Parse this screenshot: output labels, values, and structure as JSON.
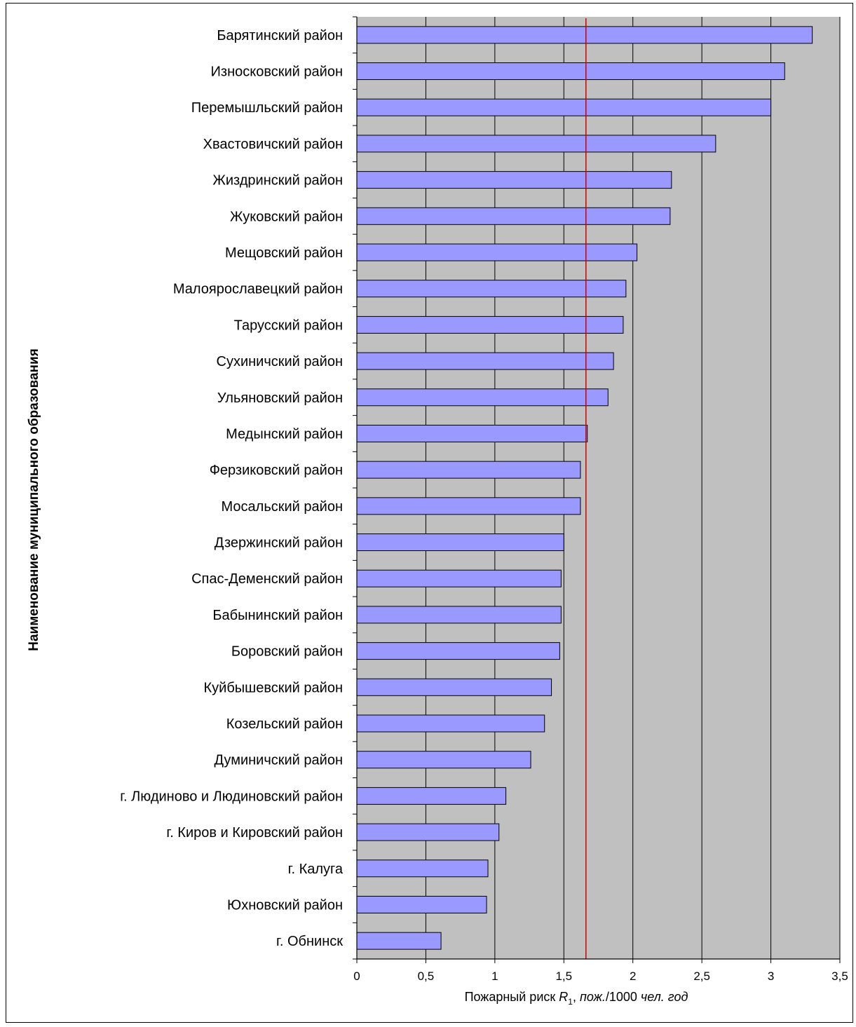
{
  "chart_data": {
    "type": "bar",
    "orientation": "horizontal",
    "categories": [
      "Барятинский район",
      "Износковский район",
      "Перемышльский район",
      "Хвастовичский район",
      "Жиздринский район",
      "Жуковский район",
      "Мещовский район",
      "Малоярославецкий район",
      "Тарусский  район",
      "Сухиничский  район",
      "Ульяновский  район",
      "Медынский район",
      "Ферзиковский район",
      "Мосальский район",
      "Дзержинский район",
      "Спас-Деменский район",
      "Бабынинский район",
      "Боровский район",
      "Куйбышевский район",
      "Козельский район",
      "Думиничский район",
      "г. Людиново и Людиновский район",
      "г. Киров и Кировский район",
      "г. Калуга",
      "Юхновский район",
      "г. Обнинск"
    ],
    "values": [
      3.3,
      3.1,
      3.0,
      2.6,
      2.28,
      2.27,
      2.03,
      1.95,
      1.93,
      1.86,
      1.82,
      1.67,
      1.62,
      1.62,
      1.5,
      1.48,
      1.48,
      1.47,
      1.41,
      1.36,
      1.26,
      1.08,
      1.03,
      0.95,
      0.94,
      0.61
    ],
    "reference_line": 1.66,
    "xlim": [
      0,
      3.5
    ],
    "x_ticks": [
      0,
      0.5,
      1,
      1.5,
      2,
      2.5,
      3,
      3.5
    ],
    "x_tick_labels": [
      "0",
      "0,5",
      "1",
      "1,5",
      "2",
      "2,5",
      "3",
      "3,5"
    ],
    "xlabel_parts": {
      "prefix": "Пожарный риск ",
      "symbol": "R",
      "subscript": "1",
      "sep": ", ",
      "unit_a": "пож.",
      "mid": "/1000 ",
      "unit_b": "чел. год"
    },
    "ylabel": "Наименование муниципального образования",
    "grid": true,
    "colors": {
      "bar": "#9999ff",
      "plot_bg": "#c0c0c0",
      "reference_line": "#cc0000",
      "grid": "#000000"
    }
  }
}
